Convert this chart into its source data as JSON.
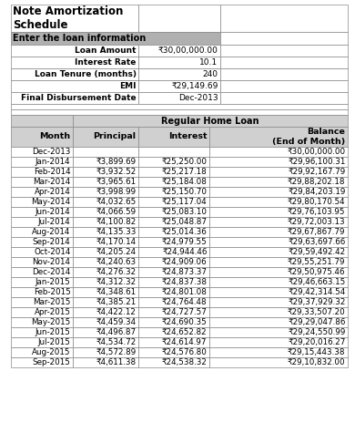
{
  "title_line1": "Note Amortization",
  "title_line2": "Schedule",
  "loan_info_header": "Enter the loan information",
  "loan_info": [
    [
      "Loan Amount",
      "₹30,00,000.00"
    ],
    [
      "Interest Rate",
      "10.1"
    ],
    [
      "Loan Tenure (months)",
      "240"
    ],
    [
      "EMI",
      "₹29,149.69"
    ],
    [
      "Final Disbursement Date",
      "Dec-2013"
    ]
  ],
  "table_header_main": "Regular Home Loan",
  "col_headers": [
    "Month",
    "Principal",
    "Interest",
    "Balance\n(End of Month)"
  ],
  "rows": [
    [
      "Dec-2013",
      "",
      "",
      "₹30,00,000.00"
    ],
    [
      "Jan-2014",
      "₹3,899.69",
      "₹25,250.00",
      "₹29,96,100.31"
    ],
    [
      "Feb-2014",
      "₹3,932.52",
      "₹25,217.18",
      "₹29,92,167.79"
    ],
    [
      "Mar-2014",
      "₹3,965.61",
      "₹25,184.08",
      "₹29,88,202.18"
    ],
    [
      "Apr-2014",
      "₹3,998.99",
      "₹25,150.70",
      "₹29,84,203.19"
    ],
    [
      "May-2014",
      "₹4,032.65",
      "₹25,117.04",
      "₹29,80,170.54"
    ],
    [
      "Jun-2014",
      "₹4,066.59",
      "₹25,083.10",
      "₹29,76,103.95"
    ],
    [
      "Jul-2014",
      "₹4,100.82",
      "₹25,048.87",
      "₹29,72,003.13"
    ],
    [
      "Aug-2014",
      "₹4,135.33",
      "₹25,014.36",
      "₹29,67,867.79"
    ],
    [
      "Sep-2014",
      "₹4,170.14",
      "₹24,979.55",
      "₹29,63,697.66"
    ],
    [
      "Oct-2014",
      "₹4,205.24",
      "₹24,944.46",
      "₹29,59,492.42"
    ],
    [
      "Nov-2014",
      "₹4,240.63",
      "₹24,909.06",
      "₹29,55,251.79"
    ],
    [
      "Dec-2014",
      "₹4,276.32",
      "₹24,873.37",
      "₹29,50,975.46"
    ],
    [
      "Jan-2015",
      "₹4,312.32",
      "₹24,837.38",
      "₹29,46,663.15"
    ],
    [
      "Feb-2015",
      "₹4,348.61",
      "₹24,801.08",
      "₹29,42,314.54"
    ],
    [
      "Mar-2015",
      "₹4,385.21",
      "₹24,764.48",
      "₹29,37,929.32"
    ],
    [
      "Apr-2015",
      "₹4,422.12",
      "₹24,727.57",
      "₹29,33,507.20"
    ],
    [
      "May-2015",
      "₹4,459.34",
      "₹24,690.35",
      "₹29,29,047.86"
    ],
    [
      "Jun-2015",
      "₹4,496.87",
      "₹24,652.82",
      "₹29,24,550.99"
    ],
    [
      "Jul-2015",
      "₹4,534.72",
      "₹24,614.97",
      "₹29,20,016.27"
    ],
    [
      "Aug-2015",
      "₹4,572.89",
      "₹24,576.80",
      "₹29,15,443.38"
    ],
    [
      "Sep-2015",
      "₹4,611.38",
      "₹24,538.32",
      "₹29,10,832.00"
    ]
  ],
  "bg_white": "#ffffff",
  "bg_gray": "#b0b0b0",
  "bg_light_gray": "#d0d0d0",
  "border_color": "#888888",
  "title_fontsize": 8.5,
  "info_header_fontsize": 7,
  "info_fontsize": 6.5,
  "table_header_fontsize": 7,
  "col_header_fontsize": 6.8,
  "data_fontsize": 6.3
}
